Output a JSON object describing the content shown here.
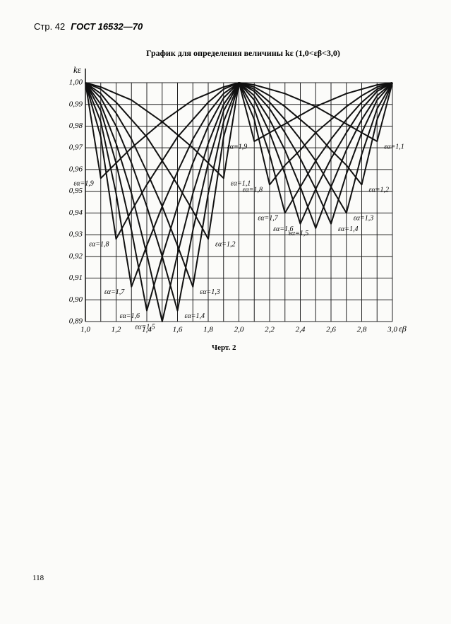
{
  "header": {
    "page": "Стр. 42",
    "standard": "ГОСТ 16532—70"
  },
  "caption": "Черт. 2",
  "page_number": "118",
  "chart_data": {
    "type": "line",
    "title": "График для определения величины kε (1,0<εβ<3,0)",
    "y_label": "kε",
    "x_label": "εβ",
    "color": "#111111",
    "x": [
      1.0,
      1.1,
      1.2,
      1.3,
      1.4,
      1.5,
      1.6,
      1.7,
      1.8,
      1.9,
      2.0,
      2.1,
      2.2,
      2.3,
      2.4,
      2.5,
      2.6,
      2.7,
      2.8,
      2.9,
      3.0
    ],
    "xlim": [
      1.0,
      3.0
    ],
    "ylim": [
      0.89,
      1.0
    ],
    "xticks": [
      {
        "value": 1.0,
        "label": "1,0"
      },
      {
        "value": 1.2,
        "label": "1,2"
      },
      {
        "value": 1.4,
        "label": "1,4"
      },
      {
        "value": 1.6,
        "label": "1,6"
      },
      {
        "value": 1.8,
        "label": "1,8"
      },
      {
        "value": 2.0,
        "label": "2,0"
      },
      {
        "value": 2.2,
        "label": "2,2"
      },
      {
        "value": 2.4,
        "label": "2,4"
      },
      {
        "value": 2.6,
        "label": "2,6"
      },
      {
        "value": 2.8,
        "label": "2,8"
      },
      {
        "value": 3.0,
        "label": "3,0"
      }
    ],
    "xgrid": [
      1.1,
      1.3,
      1.5,
      1.7,
      1.9,
      2.1,
      2.3,
      2.5,
      2.7,
      2.9
    ],
    "yticks": [
      {
        "value": 0.89,
        "label": "0,89"
      },
      {
        "value": 0.9,
        "label": "0,90"
      },
      {
        "value": 0.91,
        "label": "0,91"
      },
      {
        "value": 0.92,
        "label": "0,92"
      },
      {
        "value": 0.93,
        "label": "0,93"
      },
      {
        "value": 0.94,
        "label": "0,94"
      },
      {
        "value": 0.95,
        "label": "0,95"
      },
      {
        "value": 0.96,
        "label": "0,96"
      },
      {
        "value": 0.97,
        "label": "0,97"
      },
      {
        "value": 0.98,
        "label": "0,98"
      },
      {
        "value": 0.99,
        "label": "0,99"
      },
      {
        "value": 1.0,
        "label": "1,00"
      }
    ],
    "grid": true,
    "series": [
      {
        "name": "εα=1,1",
        "values": [
          1.0,
          0.998,
          0.995,
          0.992,
          0.987,
          0.982,
          0.976,
          0.97,
          0.963,
          0.956,
          1.0,
          0.999,
          0.997,
          0.995,
          0.992,
          0.989,
          0.985,
          0.981,
          0.977,
          0.973,
          1.0
        ]
      },
      {
        "name": "εα=1,2",
        "values": [
          1.0,
          0.997,
          0.991,
          0.983,
          0.975,
          0.964,
          0.953,
          0.941,
          0.928,
          0.975,
          1.0,
          0.998,
          0.994,
          0.989,
          0.983,
          0.977,
          0.969,
          0.962,
          0.953,
          0.983,
          1.0
        ]
      },
      {
        "name": "εα=1,3",
        "values": [
          1.0,
          0.995,
          0.986,
          0.974,
          0.959,
          0.943,
          0.925,
          0.906,
          0.949,
          0.982,
          1.0,
          0.997,
          0.991,
          0.983,
          0.974,
          0.964,
          0.952,
          0.94,
          0.967,
          0.988,
          1.0
        ]
      },
      {
        "name": "εα=1,4",
        "values": [
          1.0,
          0.993,
          0.98,
          0.963,
          0.943,
          0.92,
          0.895,
          0.932,
          0.963,
          0.987,
          1.0,
          0.996,
          0.988,
          0.977,
          0.965,
          0.951,
          0.935,
          0.958,
          0.977,
          0.992,
          1.0
        ]
      },
      {
        "name": "εα=1,5",
        "values": [
          1.0,
          0.99,
          0.972,
          0.949,
          0.921,
          0.89,
          0.921,
          0.949,
          0.972,
          0.99,
          1.0,
          0.994,
          0.983,
          0.969,
          0.952,
          0.933,
          0.952,
          0.969,
          0.983,
          0.994,
          1.0
        ]
      },
      {
        "name": "εα=1,6",
        "values": [
          1.0,
          0.987,
          0.963,
          0.932,
          0.895,
          0.92,
          0.943,
          0.963,
          0.98,
          0.993,
          1.0,
          0.992,
          0.977,
          0.958,
          0.935,
          0.951,
          0.965,
          0.977,
          0.988,
          0.996,
          1.0
        ]
      },
      {
        "name": "εα=1,7",
        "values": [
          1.0,
          0.982,
          0.949,
          0.906,
          0.925,
          0.943,
          0.959,
          0.974,
          0.986,
          0.995,
          1.0,
          0.988,
          0.967,
          0.94,
          0.952,
          0.964,
          0.974,
          0.983,
          0.991,
          0.997,
          1.0
        ]
      },
      {
        "name": "εα=1,8",
        "values": [
          1.0,
          0.975,
          0.928,
          0.941,
          0.953,
          0.964,
          0.975,
          0.983,
          0.991,
          0.997,
          1.0,
          0.983,
          0.953,
          0.962,
          0.969,
          0.977,
          0.983,
          0.989,
          0.994,
          0.998,
          1.0
        ]
      },
      {
        "name": "εα=1,9",
        "values": [
          1.0,
          0.956,
          0.963,
          0.97,
          0.976,
          0.982,
          0.987,
          0.992,
          0.995,
          0.998,
          1.0,
          0.973,
          0.977,
          0.981,
          0.985,
          0.989,
          0.992,
          0.995,
          0.997,
          0.999,
          1.0
        ]
      }
    ]
  }
}
